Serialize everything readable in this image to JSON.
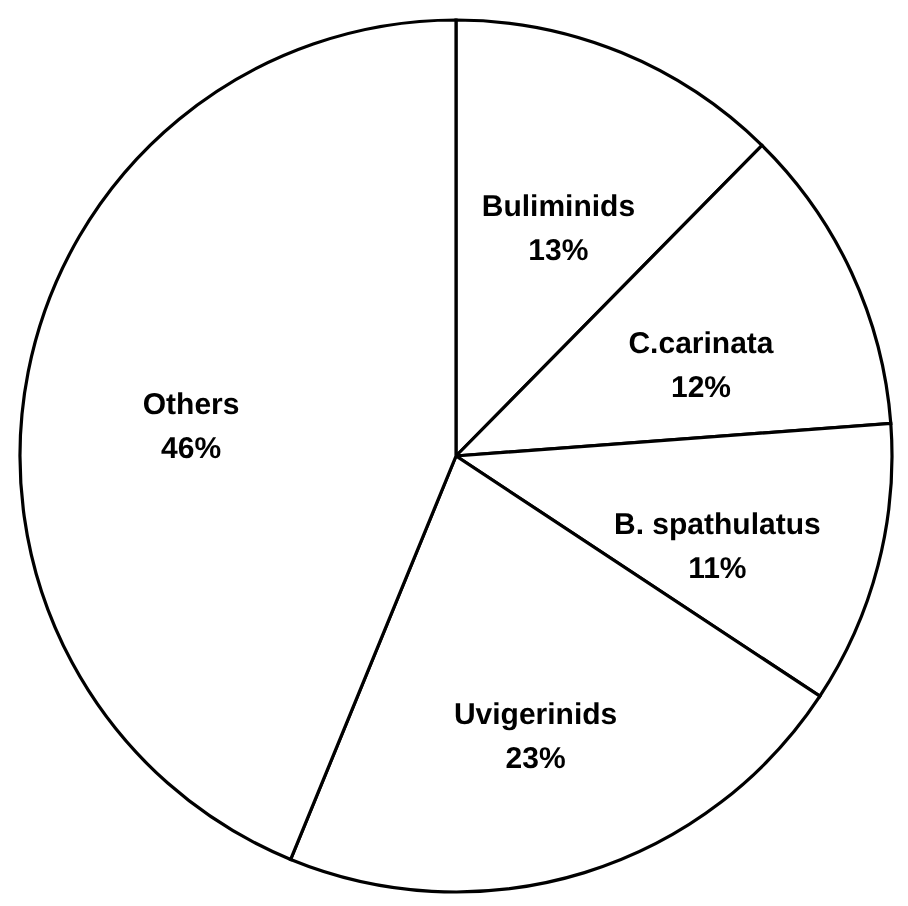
{
  "chart_data": {
    "type": "pie",
    "categories": [
      "Buliminids",
      "C.carinata",
      "B. spathulatus",
      "Uvigerinids",
      "Others"
    ],
    "values": [
      13,
      12,
      11,
      23,
      46
    ],
    "value_labels": [
      "13%",
      "12%",
      "11%",
      "23%",
      "46%"
    ],
    "colors": [
      "#ffffff",
      "#ffffff",
      "#ffffff",
      "#ffffff",
      "#ffffff"
    ],
    "legend": false
  }
}
